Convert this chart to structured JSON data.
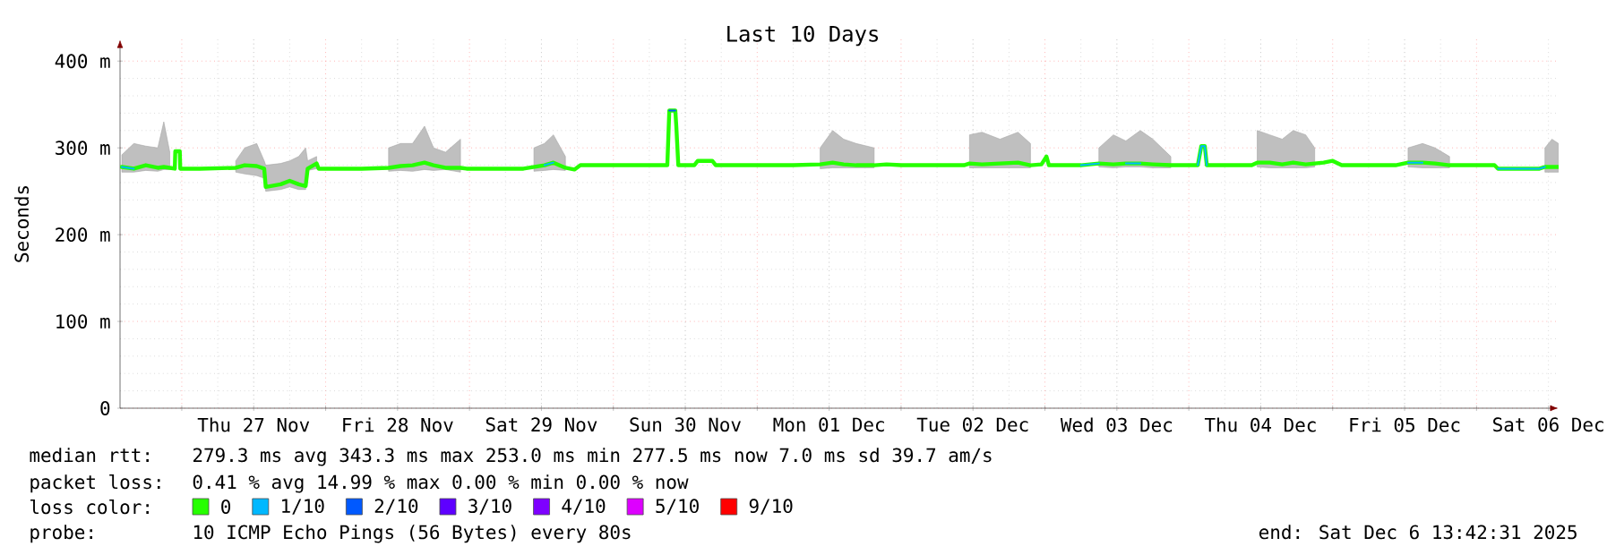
{
  "chart_data": {
    "type": "line",
    "title": "Last 10 Days",
    "ylabel": "Seconds",
    "legend_title": "loss color:",
    "xlim": [
      "2025-11-26T13:42",
      "2025-12-06T13:42"
    ],
    "xticks": [
      {
        "value": "2025-11-27T00:00",
        "label": null
      },
      {
        "value": "2025-11-28T00:00",
        "label": null
      },
      {
        "value": "2025-11-29T00:00",
        "label": null
      },
      {
        "value": "2025-11-30T00:00",
        "label": null
      },
      {
        "value": "2025-12-01T00:00",
        "label": null
      },
      {
        "value": "2025-12-02T00:00",
        "label": null
      },
      {
        "value": "2025-12-03T00:00",
        "label": null
      },
      {
        "value": "2025-12-04T00:00",
        "label": null
      },
      {
        "value": "2025-12-05T00:00",
        "label": null
      },
      {
        "value": "2025-12-06T00:00",
        "label": null
      },
      {
        "value": "2025-11-27T12:00",
        "label": "Thu 27 Nov"
      },
      {
        "value": "2025-11-28T12:00",
        "label": "Fri 28 Nov"
      },
      {
        "value": "2025-11-29T12:00",
        "label": "Sat 29 Nov"
      },
      {
        "value": "2025-11-30T12:00",
        "label": "Sun 30 Nov"
      },
      {
        "value": "2025-12-01T12:00",
        "label": "Mon 01 Dec"
      },
      {
        "value": "2025-12-02T12:00",
        "label": "Tue 02 Dec"
      },
      {
        "value": "2025-12-03T12:00",
        "label": "Wed 03 Dec"
      },
      {
        "value": "2025-12-04T12:00",
        "label": "Thu 04 Dec"
      },
      {
        "value": "2025-12-05T12:00",
        "label": "Fri 05 Dec"
      },
      {
        "value": "2025-12-06T12:00",
        "label": "Sat 06 Dec"
      }
    ],
    "ylim": [
      0,
      425
    ],
    "yticks": [
      0,
      {
        "value": 100,
        "label": "100 m"
      },
      {
        "value": 200,
        "label": "200 m"
      },
      {
        "value": 300,
        "label": "300 m"
      },
      {
        "value": 400,
        "label": "400 m"
      }
    ],
    "grid": true,
    "legend": "bottom",
    "x": [
      "2025-11-26T14:00",
      "2025-11-26T16:00",
      "2025-11-26T18:00",
      "2025-11-26T20:00",
      "2025-11-26T21:00",
      "2025-11-26T22:00",
      "2025-11-26T22:50",
      "2025-11-26T22:55",
      "2025-11-26T23:40",
      "2025-11-26T23:45",
      "2025-11-27T03:00",
      "2025-11-27T09:00",
      "2025-11-27T10:30",
      "2025-11-27T12:30",
      "2025-11-27T13:45",
      "2025-11-27T14:00",
      "2025-11-27T16:30",
      "2025-11-27T18:00",
      "2025-11-27T19:30",
      "2025-11-27T20:40",
      "2025-11-27T21:00",
      "2025-11-27T22:30",
      "2025-11-27T22:50",
      "2025-11-28T06:00",
      "2025-11-28T10:30",
      "2025-11-28T12:30",
      "2025-11-28T14:30",
      "2025-11-28T16:30",
      "2025-11-28T18:00",
      "2025-11-28T20:00",
      "2025-11-28T22:30",
      "2025-11-28T23:30",
      "2025-11-29T09:00",
      "2025-11-29T10:45",
      "2025-11-29T12:30",
      "2025-11-29T14:00",
      "2025-11-29T16:00",
      "2025-11-29T17:30",
      "2025-11-29T18:30",
      "2025-11-30T09:00",
      "2025-11-30T09:20",
      "2025-11-30T10:20",
      "2025-11-30T10:30",
      "2025-11-30T10:50",
      "2025-11-30T13:30",
      "2025-11-30T14:05",
      "2025-11-30T16:30",
      "2025-11-30T17:05",
      "2025-12-01T06:00",
      "2025-12-01T10:30",
      "2025-12-01T12:35",
      "2025-12-01T14:25",
      "2025-12-01T16:30",
      "2025-12-01T19:30",
      "2025-12-01T21:35",
      "2025-12-02T00:00",
      "2025-12-02T10:30",
      "2025-12-02T11:25",
      "2025-12-02T13:30",
      "2025-12-02T16:30",
      "2025-12-02T19:30",
      "2025-12-02T21:35",
      "2025-12-02T23:25",
      "2025-12-03T00:15",
      "2025-12-03T00:40",
      "2025-12-03T06:00",
      "2025-12-03T09:00",
      "2025-12-03T11:25",
      "2025-12-03T13:30",
      "2025-12-03T15:55",
      "2025-12-03T18:00",
      "2025-12-03T21:00",
      "2025-12-04T01:30",
      "2025-12-04T02:05",
      "2025-12-04T02:40",
      "2025-12-04T03:00",
      "2025-12-04T10:30",
      "2025-12-04T11:25",
      "2025-12-04T13:30",
      "2025-12-04T15:35",
      "2025-12-04T17:25",
      "2025-12-04T19:30",
      "2025-12-04T21:00",
      "2025-12-04T22:30",
      "2025-12-05T00:00",
      "2025-12-05T01:30",
      "2025-12-05T10:30",
      "2025-12-05T12:35",
      "2025-12-05T15:00",
      "2025-12-05T17:05",
      "2025-12-05T19:30",
      "2025-12-05T21:00",
      "2025-12-06T03:00",
      "2025-12-06T03:35",
      "2025-12-06T10:30",
      "2025-12-06T11:25",
      "2025-12-06T12:35",
      "2025-12-06T13:40"
    ],
    "series": [
      {
        "name": "0",
        "color": "#26ff00",
        "values": [
          278,
          276,
          280,
          277,
          278,
          277,
          276,
          296,
          296,
          276,
          276,
          277,
          280,
          279,
          276,
          255,
          258,
          262,
          258,
          256,
          276,
          282,
          276,
          276,
          277,
          279,
          280,
          283,
          280,
          277,
          277,
          276,
          276,
          278,
          280,
          283,
          277,
          275,
          280,
          280,
          343,
          343,
          325,
          280,
          280,
          285,
          285,
          280,
          280,
          281,
          283,
          281,
          280,
          280,
          281,
          280,
          280,
          282,
          281,
          282,
          283,
          280,
          281,
          290,
          280,
          280,
          282,
          281,
          282,
          282,
          281,
          280,
          280,
          302,
          302,
          280,
          280,
          283,
          283,
          281,
          283,
          281,
          282,
          283,
          285,
          280,
          280,
          283,
          283,
          282,
          280,
          280,
          280,
          276,
          276,
          278,
          278,
          278
        ],
        "lower": [
          272,
          272,
          274,
          273,
          275,
          275,
          null,
          null,
          null,
          null,
          null,
          272,
          270,
          268,
          265,
          250,
          252,
          255,
          252,
          252,
          274,
          276,
          null,
          null,
          273,
          274,
          273,
          275,
          274,
          275,
          272,
          null,
          null,
          273,
          274,
          275,
          274,
          null,
          null,
          null,
          null,
          null,
          null,
          null,
          null,
          null,
          null,
          null,
          null,
          276,
          277,
          277,
          277,
          277,
          null,
          null,
          null,
          277,
          277,
          277,
          277,
          277,
          null,
          null,
          null,
          null,
          278,
          277,
          278,
          278,
          277,
          277,
          null,
          null,
          null,
          null,
          null,
          278,
          277,
          277,
          277,
          277,
          278,
          null,
          null,
          null,
          null,
          278,
          277,
          277,
          277,
          null,
          null,
          null,
          null,
          272,
          272,
          272
        ],
        "upper": [
          292,
          305,
          302,
          300,
          330,
          295,
          null,
          null,
          null,
          null,
          null,
          285,
          300,
          305,
          285,
          280,
          282,
          285,
          290,
          300,
          285,
          290,
          null,
          null,
          300,
          305,
          305,
          325,
          300,
          295,
          310,
          null,
          null,
          300,
          305,
          315,
          290,
          null,
          null,
          null,
          null,
          null,
          null,
          null,
          null,
          null,
          null,
          null,
          null,
          300,
          320,
          310,
          305,
          300,
          null,
          null,
          null,
          315,
          318,
          310,
          318,
          305,
          null,
          null,
          null,
          null,
          300,
          315,
          308,
          320,
          310,
          290,
          null,
          null,
          null,
          null,
          null,
          320,
          315,
          310,
          320,
          315,
          300,
          null,
          null,
          null,
          null,
          300,
          305,
          300,
          290,
          null,
          null,
          null,
          null,
          300,
          310,
          305
        ]
      },
      {
        "name": "1/10",
        "color": "#00b8ff",
        "x": [
          "2025-11-26T14:00",
          "2025-11-26T16:00",
          "2025-11-29T10:45",
          "2025-11-29T12:30",
          "2025-11-29T14:00",
          "2025-12-03T00:40",
          "2025-12-03T06:00",
          "2025-12-03T09:00",
          "2025-12-03T11:25",
          "2025-12-03T13:30",
          "2025-12-03T15:55",
          "2025-12-03T21:00",
          "2025-12-04T01:30",
          "2025-12-04T02:05",
          "2025-12-04T02:40",
          "2025-12-04T03:00",
          "2025-12-05T10:30",
          "2025-12-05T12:35",
          "2025-12-05T15:00",
          "2025-12-05T21:00",
          "2025-12-06T03:35",
          "2025-12-06T10:30",
          "2025-12-06T11:25"
        ],
        "values": [
          278,
          276,
          null,
          280,
          283,
          null,
          280,
          282,
          null,
          282,
          282,
          null,
          280,
          302,
          302,
          280,
          null,
          283,
          283,
          null,
          276,
          276,
          278
        ]
      },
      {
        "name": "2/10",
        "color": "#0059ff",
        "x": [
          "2025-11-30T09:20",
          "2025-11-30T10:20"
        ],
        "values": [
          343,
          343
        ]
      },
      {
        "name": "3/10",
        "color": "#5e00ff",
        "values": [
          null,
          null,
          null,
          null,
          null,
          null,
          null,
          null,
          null,
          null,
          null,
          null,
          null,
          null,
          null,
          null,
          null,
          null,
          null,
          null,
          null,
          null,
          null,
          null,
          null,
          null,
          null,
          null,
          null,
          null,
          null,
          null,
          null,
          null,
          null,
          null,
          null,
          null,
          null,
          null,
          null,
          null,
          null,
          null,
          null,
          null,
          null,
          null,
          null,
          null,
          null,
          null,
          null,
          null,
          null,
          null,
          null,
          null,
          null,
          null,
          null,
          null,
          null,
          null,
          null,
          null,
          null,
          null,
          null,
          null,
          null,
          null,
          null,
          null,
          null,
          null,
          null,
          null,
          null,
          null,
          null,
          null,
          null,
          null,
          null,
          null,
          null,
          null,
          null,
          null,
          null,
          null,
          null,
          null,
          null,
          null,
          null,
          null
        ]
      },
      {
        "name": "4/10",
        "color": "#7e00ff",
        "values": [
          null,
          null,
          null,
          null,
          null,
          null,
          null,
          null,
          null,
          null,
          null,
          null,
          null,
          null,
          null,
          null,
          null,
          null,
          null,
          null,
          null,
          null,
          null,
          null,
          null,
          null,
          null,
          null,
          null,
          null,
          null,
          null,
          null,
          null,
          null,
          null,
          null,
          null,
          null,
          null,
          null,
          null,
          null,
          null,
          null,
          null,
          null,
          null,
          null,
          null,
          null,
          null,
          null,
          null,
          null,
          null,
          null,
          null,
          null,
          null,
          null,
          null,
          null,
          null,
          null,
          null,
          null,
          null,
          null,
          null,
          null,
          null,
          null,
          null,
          null,
          null,
          null,
          null,
          null,
          null,
          null,
          null,
          null,
          null,
          null,
          null,
          null,
          null,
          null,
          null,
          null,
          null,
          null,
          null,
          null,
          null,
          null,
          null
        ]
      },
      {
        "name": "5/10",
        "color": "#dd00ff",
        "values": [
          null,
          null,
          null,
          null,
          null,
          null,
          null,
          null,
          null,
          null,
          null,
          null,
          null,
          null,
          null,
          null,
          null,
          null,
          null,
          null,
          null,
          null,
          null,
          null,
          null,
          null,
          null,
          null,
          null,
          null,
          null,
          null,
          null,
          null,
          null,
          null,
          null,
          null,
          null,
          null,
          null,
          null,
          null,
          null,
          null,
          null,
          null,
          null,
          null,
          null,
          null,
          null,
          null,
          null,
          null,
          null,
          null,
          null,
          null,
          null,
          null,
          null,
          null,
          null,
          null,
          null,
          null,
          null,
          null,
          null,
          null,
          null,
          null,
          null,
          null,
          null,
          null,
          null,
          null,
          null,
          null,
          null,
          null,
          null,
          null,
          null,
          null,
          null,
          null,
          null,
          null,
          null,
          null,
          null,
          null,
          null,
          null,
          null
        ]
      },
      {
        "name": "9/10",
        "color": "#ff0000",
        "values": [
          null,
          null,
          null,
          null,
          null,
          null,
          null,
          null,
          null,
          null,
          null,
          null,
          null,
          null,
          null,
          null,
          null,
          null,
          null,
          null,
          null,
          null,
          null,
          null,
          null,
          null,
          null,
          null,
          null,
          null,
          null,
          null,
          null,
          null,
          null,
          null,
          null,
          null,
          null,
          null,
          null,
          null,
          null,
          null,
          null,
          null,
          null,
          null,
          null,
          null,
          null,
          null,
          null,
          null,
          null,
          null,
          null,
          null,
          null,
          null,
          null,
          null,
          null,
          null,
          null,
          null,
          null,
          null,
          null,
          null,
          null,
          null,
          null,
          null,
          null,
          null,
          null,
          null,
          null,
          null,
          null,
          null,
          null,
          null,
          null,
          null,
          null,
          null,
          null,
          null,
          null,
          null,
          null,
          null,
          null,
          null,
          null,
          null
        ]
      }
    ],
    "annotations": [
      "median rtt:",
      "279.3 ms avg  343.3 ms max  253.0 ms min  277.5 ms now  7.0 ms sd  39.7   am/s",
      "packet loss:",
      "0.41 % avg  14.99 % max  0.00 % min  0.00 % now",
      "probe:",
      "10 ICMP Echo Pings (56 Bytes) every 80s",
      "end: Sat Dec  6 13:42:31 2025"
    ]
  }
}
